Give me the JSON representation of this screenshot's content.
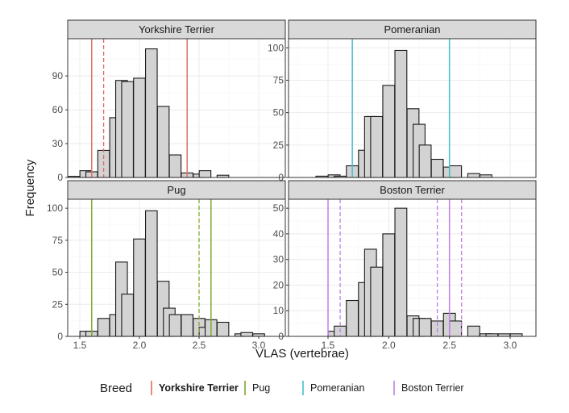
{
  "chart_data": {
    "type": "bar",
    "xlabel": "VLAS (vertebrae)",
    "ylabel": "Frequency",
    "bin_width": 0.1,
    "xlim": [
      1.35,
      3.2
    ],
    "x_ticks": [
      1.5,
      2.0,
      2.5,
      3.0
    ],
    "x_tick_labels": [
      "1.5",
      "2.0",
      "2.5",
      "3.0"
    ],
    "legend": {
      "title": "Breed",
      "position": "bottom",
      "entries": [
        {
          "label": "Yorkshire Terrier",
          "color": "#e06c66",
          "bold": true
        },
        {
          "label": "Pug",
          "color": "#7caa2d",
          "bold": false
        },
        {
          "label": "Pomeranian",
          "color": "#3fc1c9",
          "bold": false
        },
        {
          "label": "Boston Terrier",
          "color": "#c07ee6",
          "bold": false
        }
      ]
    },
    "panels": [
      {
        "title": "Yorkshire Terrier",
        "color": "#e06c66",
        "ylim": [
          0,
          123
        ],
        "y_ticks": [
          0,
          30,
          60,
          90
        ],
        "y_tick_labels": [
          "0",
          "30",
          "60",
          "90"
        ],
        "x": [
          1.45,
          1.55,
          1.6,
          1.7,
          1.8,
          1.85,
          1.9,
          2.0,
          2.1,
          2.2,
          2.3,
          2.4,
          2.5,
          2.55,
          2.7
        ],
        "values": [
          1,
          6,
          5,
          24,
          53,
          86,
          85,
          88,
          114,
          63,
          20,
          4,
          3,
          6,
          2
        ],
        "solid_lines": [
          1.6,
          2.4
        ],
        "dashed_lines": [
          1.7
        ]
      },
      {
        "title": "Pomeranian",
        "color": "#3fc1c9",
        "ylim": [
          0,
          107
        ],
        "y_ticks": [
          0,
          25,
          50,
          75,
          100
        ],
        "y_tick_labels": [
          "0",
          "25",
          "50",
          "75",
          "100"
        ],
        "x": [
          1.45,
          1.55,
          1.6,
          1.7,
          1.8,
          1.85,
          1.9,
          2.0,
          2.1,
          2.2,
          2.25,
          2.3,
          2.4,
          2.5,
          2.55,
          2.7,
          2.8
        ],
        "values": [
          1,
          2,
          1,
          9,
          21,
          47,
          47,
          71,
          98,
          53,
          41,
          25,
          14,
          8,
          9,
          3,
          2
        ],
        "solid_lines": [
          1.7,
          2.5
        ],
        "dashed_lines": []
      },
      {
        "title": "Pug",
        "color": "#7caa2d",
        "ylim": [
          0,
          107
        ],
        "y_ticks": [
          0,
          25,
          50,
          75,
          100
        ],
        "y_tick_labels": [
          "0",
          "25",
          "50",
          "75",
          "100"
        ],
        "x": [
          1.55,
          1.6,
          1.7,
          1.8,
          1.85,
          1.9,
          2.0,
          2.1,
          2.2,
          2.25,
          2.3,
          2.4,
          2.5,
          2.55,
          2.6,
          2.7,
          2.85,
          2.9,
          3.0
        ],
        "values": [
          4,
          4,
          14,
          17,
          58,
          33,
          76,
          98,
          43,
          22,
          17,
          17,
          14,
          7,
          13,
          11,
          2,
          3,
          2
        ],
        "solid_lines": [
          1.6,
          2.6
        ],
        "dashed_lines": [
          2.5
        ]
      },
      {
        "title": "Boston Terrier",
        "color": "#c07ee6",
        "ylim": [
          0,
          53.5
        ],
        "y_ticks": [
          0,
          10,
          20,
          30,
          40,
          50
        ],
        "y_tick_labels": [
          "0",
          "10",
          "20",
          "30",
          "40",
          "50"
        ],
        "x": [
          1.55,
          1.6,
          1.7,
          1.8,
          1.85,
          1.9,
          2.0,
          2.1,
          2.2,
          2.25,
          2.3,
          2.4,
          2.5,
          2.55,
          2.7,
          2.8,
          2.85,
          2.95,
          3.05
        ],
        "values": [
          2,
          4,
          14,
          21,
          34,
          27,
          40,
          50,
          8,
          7,
          7,
          6,
          9,
          6,
          4,
          1,
          1,
          1,
          1
        ],
        "solid_lines": [
          1.5,
          2.5
        ],
        "dashed_lines": [
          1.6,
          2.4,
          2.6
        ]
      }
    ]
  }
}
